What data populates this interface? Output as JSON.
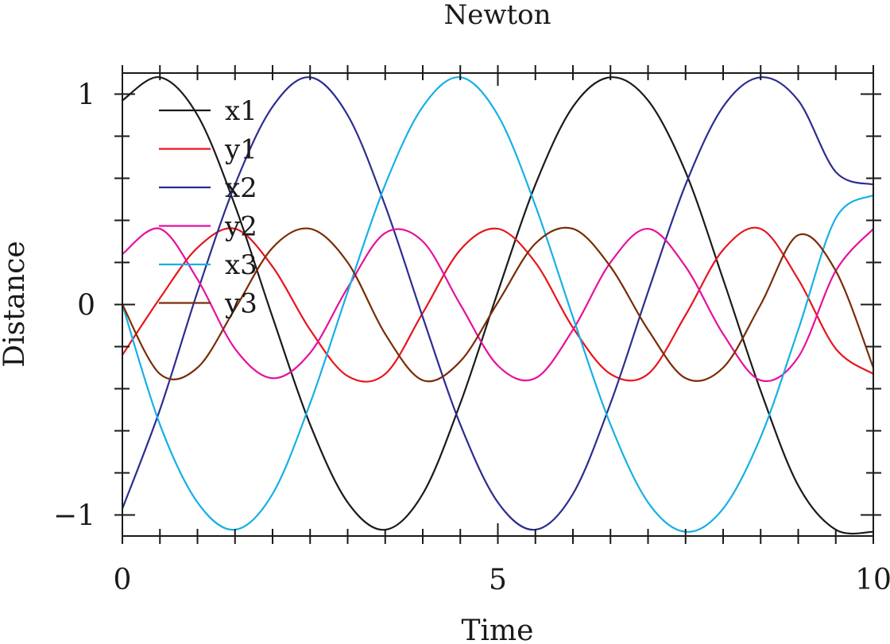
{
  "chart_data": {
    "type": "line",
    "title": "Newton",
    "xlabel": "Time",
    "ylabel": "Distance",
    "xlim": [
      0,
      10
    ],
    "ylim": [
      -1.1,
      1.1
    ],
    "grid": false,
    "legend_position": "top-left",
    "x_ticks": [
      {
        "value": 0,
        "label": "0"
      },
      {
        "value": 5,
        "label": "5"
      },
      {
        "value": 10,
        "label": "10"
      }
    ],
    "y_ticks": [
      {
        "value": 1,
        "label": "1"
      },
      {
        "value": 0,
        "label": "0"
      },
      {
        "value": -1,
        "label": "−1"
      }
    ],
    "x_minor_step": 0.5,
    "y_minor_step": 0.2,
    "x": [
      0,
      0.5,
      1,
      1.5,
      2,
      2.5,
      3,
      3.5,
      4,
      4.5,
      5,
      5.5,
      6,
      6.5,
      7,
      7.5,
      8,
      8.5,
      9,
      9.5,
      10
    ],
    "series": [
      {
        "name": "x1",
        "color": "#1a1a1a",
        "values": [
          0.97,
          1.08,
          0.9,
          0.47,
          -0.06,
          -0.57,
          -0.94,
          -1.07,
          -0.9,
          -0.47,
          0.06,
          0.57,
          0.94,
          1.08,
          0.97,
          0.63,
          0.12,
          -0.41,
          -0.86,
          -1.07,
          -1.08
        ]
      },
      {
        "name": "y1",
        "color": "#e8141c",
        "values": [
          -0.24,
          0.03,
          0.27,
          0.36,
          0.18,
          -0.12,
          -0.34,
          -0.33,
          -0.04,
          0.26,
          0.36,
          0.2,
          -0.11,
          -0.33,
          -0.33,
          -0.05,
          0.26,
          0.36,
          0.12,
          -0.21,
          -0.33
        ]
      },
      {
        "name": "x2",
        "color": "#2b2d8e",
        "values": [
          -0.97,
          -0.5,
          0.06,
          0.57,
          0.94,
          1.08,
          0.9,
          0.47,
          -0.06,
          -0.57,
          -0.94,
          -1.07,
          -0.9,
          -0.47,
          0.06,
          0.57,
          0.94,
          1.08,
          0.97,
          0.63,
          0.57
        ]
      },
      {
        "name": "y2",
        "color": "#e5119d",
        "values": [
          0.24,
          0.36,
          0.12,
          -0.21,
          -0.35,
          -0.23,
          0.08,
          0.34,
          0.3,
          0.0,
          -0.29,
          -0.35,
          -0.12,
          0.2,
          0.36,
          0.18,
          -0.14,
          -0.36,
          -0.25,
          0.16,
          0.36
        ]
      },
      {
        "name": "x3",
        "color": "#16b0e5",
        "values": [
          0.0,
          -0.57,
          -0.94,
          -1.07,
          -0.9,
          -0.47,
          0.06,
          0.57,
          0.94,
          1.08,
          0.9,
          0.47,
          -0.06,
          -0.57,
          -0.94,
          -1.08,
          -0.97,
          -0.63,
          -0.12,
          0.41,
          0.52
        ]
      },
      {
        "name": "y3",
        "color": "#7a2c06",
        "values": [
          0.0,
          -0.33,
          -0.3,
          -0.02,
          0.27,
          0.36,
          0.2,
          -0.14,
          -0.36,
          -0.27,
          0.01,
          0.29,
          0.36,
          0.18,
          -0.12,
          -0.35,
          -0.3,
          0.0,
          0.33,
          0.16,
          -0.3
        ]
      }
    ]
  }
}
